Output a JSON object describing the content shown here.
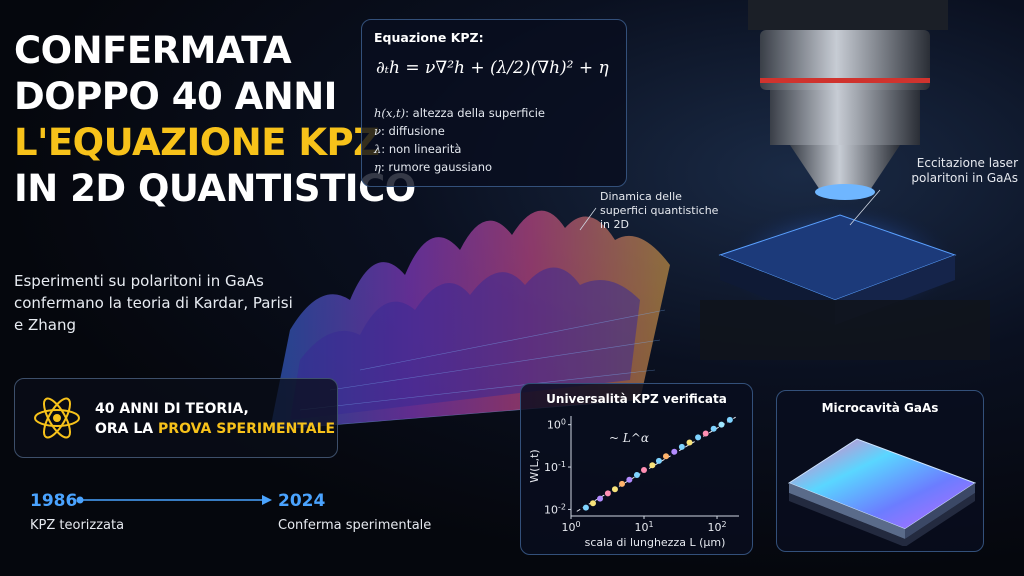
{
  "headline": {
    "line1": "CONFERMATA",
    "line2": "DOPPO 40 ANNI",
    "line3": "L'EQUAZIONE KPZ",
    "line4": "IN 2D QUANTISTICO"
  },
  "subtitle": "Esperimenti su polaritoni in GaAs confermano la teoria di Kardar, Parisi e Zhang",
  "equation_panel": {
    "title": "Equazione KPZ:",
    "formula": "∂ₜh = ν∇²h + (λ/2)(∇h)² + η",
    "definitions": [
      {
        "symbol": "h(x,t)",
        "text": ": altezza della superficie"
      },
      {
        "symbol": "ν",
        "text": ": diffusione"
      },
      {
        "symbol": "λ",
        "text": ": non linearità"
      },
      {
        "symbol": "η",
        "text": ": rumore gaussiano"
      }
    ]
  },
  "callouts": {
    "surface": "Dinamica delle superfici quantistiche in 2D",
    "laser": "Eccitazione laser polaritoni in GaAs"
  },
  "theory_box": {
    "line1": "40 ANNI DI TEORIA,",
    "line2_prefix": "ORA LA ",
    "line2_highlight": "PROVA SPERIMENTALE",
    "icon": "atom-icon"
  },
  "timeline": {
    "start_year": "1986",
    "start_caption": "KPZ teorizzata",
    "end_year": "2024",
    "end_caption": "Conferma sperimentale"
  },
  "plot_panel": {
    "title": "Universalità KPZ verificata",
    "annotation": "~ L^α",
    "xlabel": "scala di lunghezza L (μm)",
    "ylabel": "W(L,t)"
  },
  "micro_panel": {
    "title": "Microcavità GaAs"
  },
  "colors": {
    "accent_yellow": "#f7c21a",
    "timeline_blue": "#4aa3ff",
    "panel_border": "#33507a"
  },
  "chart_data": {
    "type": "scatter",
    "title": "Universalità KPZ verificata",
    "xlabel": "scala di lunghezza L (μm)",
    "ylabel": "W(L,t)",
    "x_scale": "log",
    "y_scale": "log",
    "xlim": [
      1,
      200
    ],
    "ylim": [
      0.007,
      1.6
    ],
    "x_ticks": [
      "10^0",
      "10^1",
      "10^2"
    ],
    "y_ticks": [
      "10^-2",
      "10^-1",
      "10^0"
    ],
    "grid": false,
    "annotation": "~ L^α",
    "points": [
      {
        "x": 1.6,
        "y": 0.011,
        "color": "#7fd3ff"
      },
      {
        "x": 2.0,
        "y": 0.014,
        "color": "#f7e27a"
      },
      {
        "x": 2.5,
        "y": 0.018,
        "color": "#b38cff"
      },
      {
        "x": 3.2,
        "y": 0.024,
        "color": "#ff8fb3"
      },
      {
        "x": 4.0,
        "y": 0.03,
        "color": "#f7e27a"
      },
      {
        "x": 5.0,
        "y": 0.04,
        "color": "#ffb36b"
      },
      {
        "x": 6.3,
        "y": 0.05,
        "color": "#b38cff"
      },
      {
        "x": 8.0,
        "y": 0.065,
        "color": "#7fd3ff"
      },
      {
        "x": 10,
        "y": 0.085,
        "color": "#ff8fb3"
      },
      {
        "x": 13,
        "y": 0.11,
        "color": "#f7e27a"
      },
      {
        "x": 16,
        "y": 0.14,
        "color": "#7fd3ff"
      },
      {
        "x": 20,
        "y": 0.18,
        "color": "#ffb36b"
      },
      {
        "x": 26,
        "y": 0.23,
        "color": "#b38cff"
      },
      {
        "x": 33,
        "y": 0.3,
        "color": "#7fd3ff"
      },
      {
        "x": 42,
        "y": 0.38,
        "color": "#f7e27a"
      },
      {
        "x": 55,
        "y": 0.5,
        "color": "#7fd3ff"
      },
      {
        "x": 70,
        "y": 0.62,
        "color": "#ff8fb3"
      },
      {
        "x": 90,
        "y": 0.8,
        "color": "#7fd3ff"
      },
      {
        "x": 115,
        "y": 1.0,
        "color": "#9ee6ff"
      },
      {
        "x": 150,
        "y": 1.3,
        "color": "#7fd3ff"
      }
    ],
    "fit_line": {
      "x": [
        1.2,
        180
      ],
      "y": [
        0.009,
        1.5
      ],
      "style": "dashed"
    }
  }
}
